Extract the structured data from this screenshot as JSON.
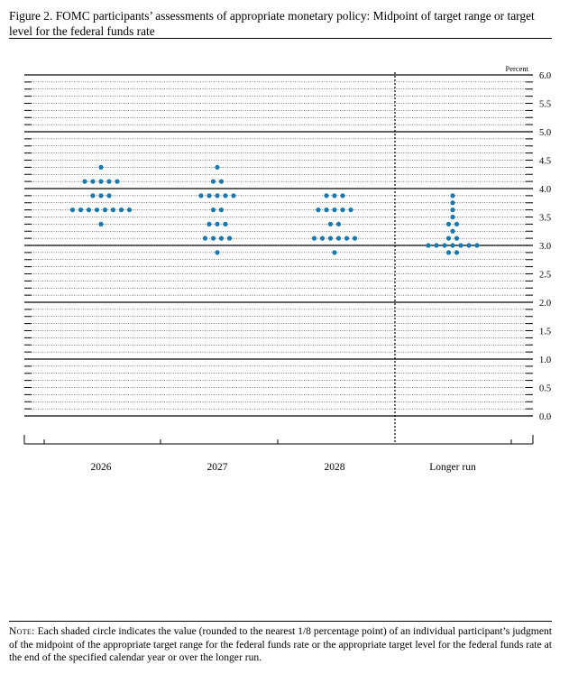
{
  "figure": {
    "title": "Figure 2. FOMC participants’ assessments of appropriate monetary policy: Midpoint of target range or target level for the federal funds rate"
  },
  "note": {
    "lead": "Note:",
    "text": "Each shaded circle indicates the value (rounded to the nearest 1/8 percentage point) of an individual participant’s judgment of the midpoint of the appropriate target range for the federal funds rate or the appropriate target level for the federal funds rate at the end of the specified calendar year or over the longer run."
  },
  "chart_data": {
    "type": "scatter",
    "title": "",
    "xlabel": "",
    "ylabel": "Percent",
    "ylim": [
      0,
      6
    ],
    "y_ticks": [
      "0.0",
      "0.5",
      "1.0",
      "1.5",
      "2.0",
      "2.5",
      "3.0",
      "3.5",
      "4.0",
      "4.5",
      "5.0",
      "5.5",
      "6.0"
    ],
    "categories": [
      "2026",
      "2027",
      "2028",
      "Longer run"
    ],
    "dot_color": "#1a7ab0",
    "grid": true,
    "columns": [
      {
        "label": "2026",
        "levels": [
          {
            "value": 4.375,
            "count": 1
          },
          {
            "value": 4.125,
            "count": 5
          },
          {
            "value": 3.875,
            "count": 3
          },
          {
            "value": 3.625,
            "count": 8
          },
          {
            "value": 3.375,
            "count": 1
          }
        ]
      },
      {
        "label": "2027",
        "levels": [
          {
            "value": 4.375,
            "count": 1
          },
          {
            "value": 4.125,
            "count": 2
          },
          {
            "value": 3.875,
            "count": 5
          },
          {
            "value": 3.625,
            "count": 2
          },
          {
            "value": 3.375,
            "count": 3
          },
          {
            "value": 3.125,
            "count": 4
          },
          {
            "value": 2.875,
            "count": 1
          }
        ]
      },
      {
        "label": "2028",
        "levels": [
          {
            "value": 3.875,
            "count": 3
          },
          {
            "value": 3.625,
            "count": 5
          },
          {
            "value": 3.375,
            "count": 2
          },
          {
            "value": 3.125,
            "count": 6
          },
          {
            "value": 2.875,
            "count": 1
          }
        ]
      },
      {
        "label": "Longer run",
        "levels": [
          {
            "value": 3.875,
            "count": 1
          },
          {
            "value": 3.75,
            "count": 1
          },
          {
            "value": 3.625,
            "count": 1
          },
          {
            "value": 3.5,
            "count": 1
          },
          {
            "value": 3.375,
            "count": 2
          },
          {
            "value": 3.25,
            "count": 1
          },
          {
            "value": 3.125,
            "count": 2
          },
          {
            "value": 3.0,
            "count": 7
          },
          {
            "value": 2.875,
            "count": 2
          }
        ]
      }
    ]
  }
}
